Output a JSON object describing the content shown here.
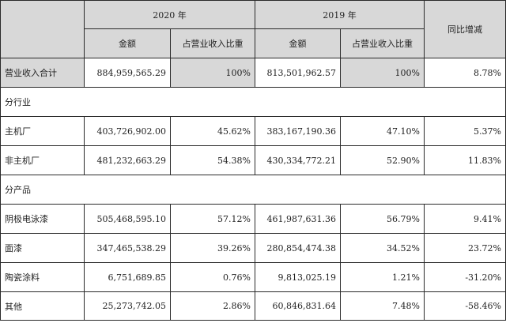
{
  "header": {
    "year_2020": "2020 年",
    "year_2019": "2019 年",
    "yoy": "同比增减",
    "amount_label": "金额",
    "ratio_label": "占营业收入比重"
  },
  "total_row": {
    "label": "营业收入合计",
    "amount_2020": "884,959,565.29",
    "ratio_2020": "100%",
    "amount_2019": "813,501,962.57",
    "ratio_2019": "100%",
    "yoy": "8.78%"
  },
  "sections": [
    {
      "title": "分行业",
      "rows": [
        {
          "label": "主机厂",
          "amount_2020": "403,726,902.00",
          "ratio_2020": "45.62%",
          "amount_2019": "383,167,190.36",
          "ratio_2019": "47.10%",
          "yoy": "5.37%"
        },
        {
          "label": "非主机厂",
          "amount_2020": "481,232,663.29",
          "ratio_2020": "54.38%",
          "amount_2019": "430,334,772.21",
          "ratio_2019": "52.90%",
          "yoy": "11.83%"
        }
      ]
    },
    {
      "title": "分产品",
      "rows": [
        {
          "label": "阴极电泳漆",
          "amount_2020": "505,468,595.10",
          "ratio_2020": "57.12%",
          "amount_2019": "461,987,631.36",
          "ratio_2019": "56.79%",
          "yoy": "9.41%"
        },
        {
          "label": "面漆",
          "amount_2020": "347,465,538.29",
          "ratio_2020": "39.26%",
          "amount_2019": "280,854,474.38",
          "ratio_2019": "34.52%",
          "yoy": "23.72%"
        },
        {
          "label": "陶瓷涂料",
          "amount_2020": "6,751,689.85",
          "ratio_2020": "0.76%",
          "amount_2019": "9,813,025.19",
          "ratio_2019": "1.21%",
          "yoy": "-31.20%"
        },
        {
          "label": "其他",
          "amount_2020": "25,273,742.05",
          "ratio_2020": "2.86%",
          "amount_2019": "60,846,831.64",
          "ratio_2019": "7.48%",
          "yoy": "-58.46%"
        }
      ]
    }
  ]
}
